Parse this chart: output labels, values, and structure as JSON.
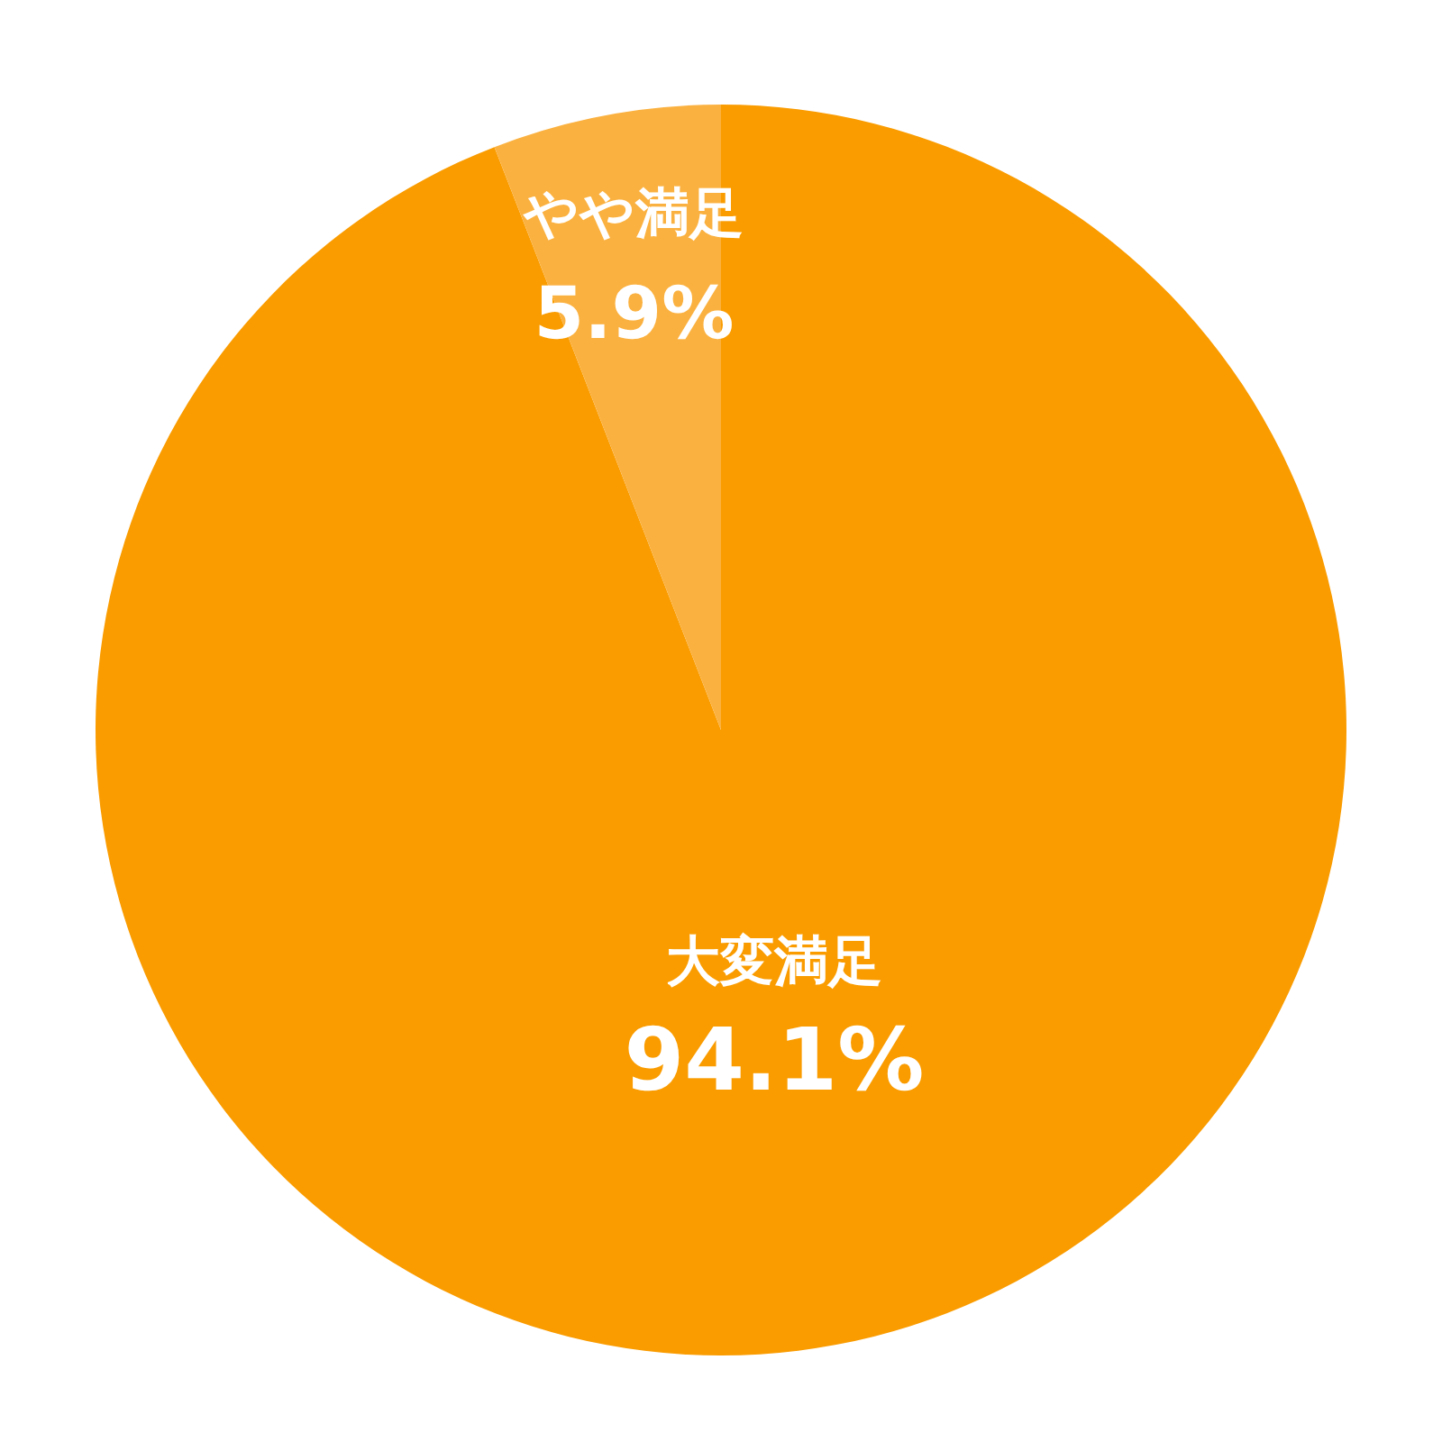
{
  "chart_data": {
    "type": "pie",
    "categories": [
      "大変満足",
      "やや満足"
    ],
    "values": [
      94.1,
      5.9
    ],
    "colors": [
      "#fa9c00",
      "#fbb13f"
    ],
    "value_labels": [
      "94.1%",
      "5.9%"
    ]
  }
}
